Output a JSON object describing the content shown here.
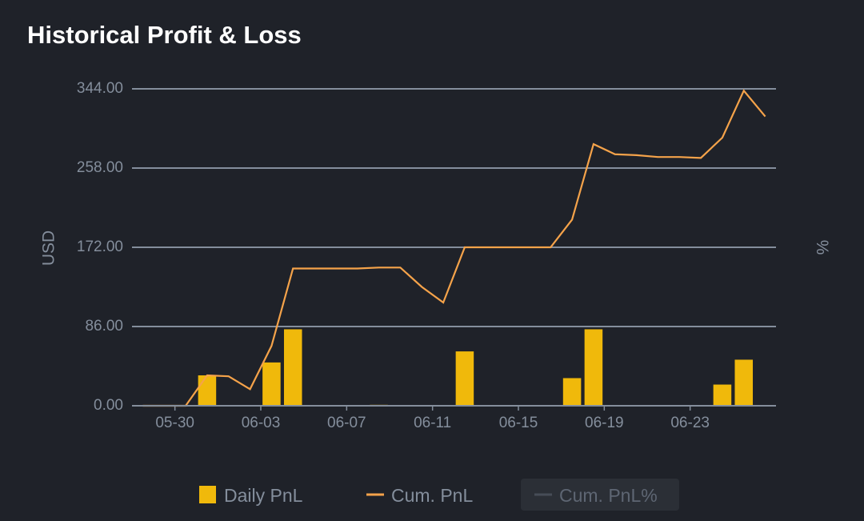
{
  "chart_data": {
    "type": "bar-line",
    "title": "Historical Profit & Loss",
    "ylabel": "USD",
    "y2label": "%",
    "categories": [
      null,
      null,
      null,
      null,
      null,
      null,
      null,
      null,
      null,
      null,
      null,
      null,
      null,
      null,
      null,
      null,
      null,
      null,
      null,
      null,
      null,
      null,
      null,
      null,
      null,
      null,
      null,
      null,
      null,
      null
    ],
    "xlim": [
      -0.5,
      29.5
    ],
    "xticks": [
      {
        "value": 1.5,
        "label": "05-30"
      },
      {
        "value": 5.5,
        "label": "06-03"
      },
      {
        "value": 9.5,
        "label": "06-07"
      },
      {
        "value": 13.5,
        "label": "06-11"
      },
      {
        "value": 17.5,
        "label": "06-15"
      },
      {
        "value": 21.5,
        "label": "06-19"
      },
      {
        "value": 25.5,
        "label": "06-23"
      }
    ],
    "ylim": [
      0,
      344
    ],
    "yticks": [
      {
        "value": 0,
        "label": "0.00"
      },
      {
        "value": 86,
        "label": "86.00"
      },
      {
        "value": 172,
        "label": "172.00"
      },
      {
        "value": 258,
        "label": "258.00"
      },
      {
        "value": 344,
        "label": "344.00"
      }
    ],
    "grid": true,
    "series": [
      {
        "name": "Daily PnL",
        "kind": "bar",
        "color": "#f0b90b",
        "values": [
          0,
          0,
          0,
          33,
          0,
          0,
          47,
          83,
          0,
          0,
          0,
          1,
          0,
          0,
          0,
          59,
          0,
          0,
          0,
          0,
          30,
          83,
          0,
          0,
          0,
          0,
          0,
          23,
          50,
          0
        ]
      },
      {
        "name": "Cum. PnL",
        "kind": "line",
        "color": "#f5a34a",
        "values": [
          0,
          0,
          0,
          33,
          32,
          18,
          65,
          149,
          149,
          149,
          149,
          150,
          150,
          129,
          112,
          172,
          172,
          172,
          172,
          172,
          202,
          284,
          273,
          272,
          270,
          270,
          269,
          291,
          342,
          314
        ]
      },
      {
        "name": "Cum. PnL%",
        "kind": "line",
        "color": "#474d57",
        "hidden": true,
        "axis": "y2",
        "values": [
          null,
          null,
          null,
          null,
          null,
          null,
          null,
          null,
          null,
          null,
          null,
          null,
          null,
          null,
          null,
          null,
          null,
          null,
          null,
          null,
          null,
          null,
          null,
          null,
          null,
          null,
          null,
          null,
          null,
          null
        ]
      }
    ]
  }
}
